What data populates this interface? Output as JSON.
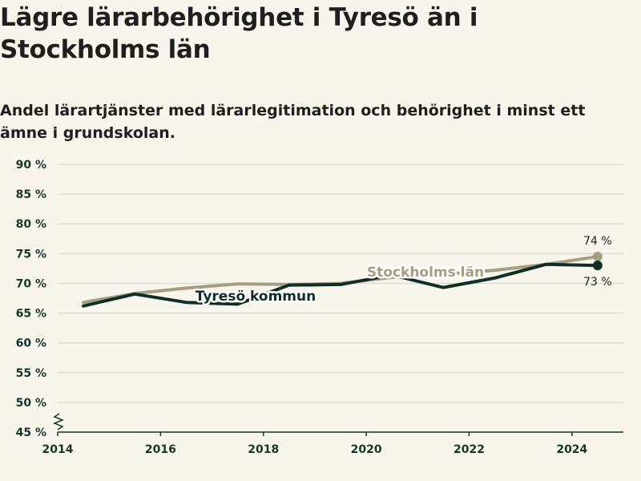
{
  "title": "Lägre lärarbehörighet i Tyresö än i Stockholms län",
  "subtitle": "Andel lärartjänster med lärarlegitimation och behörighet i minst ett ämne i grundskolan.",
  "colors": {
    "tyreso": "#0f2e26",
    "stockholm": "#a39f80",
    "grid": "#dedbd2",
    "axis": "#14372c"
  },
  "chart_data": {
    "type": "line",
    "x": [
      2014.5,
      2015.5,
      2016.5,
      2017.5,
      2018.5,
      2019.5,
      2020.5,
      2021.5,
      2022.5,
      2023.5,
      2024.5
    ],
    "x_ticks": [
      "2014",
      "2016",
      "2018",
      "2020",
      "2022",
      "2024"
    ],
    "y_ticks": [
      "90 %",
      "85 %",
      "80 %",
      "75 %",
      "70 %",
      "65 %",
      "60 %",
      "55 %",
      "50 %",
      "45 %"
    ],
    "xlim": [
      2014,
      2025
    ],
    "ylim": [
      45,
      90
    ],
    "y_axis_break": true,
    "grid": true,
    "series": [
      {
        "name": "Stockholms län",
        "key": "stockholm",
        "values": [
          66.8,
          68.3,
          69.2,
          69.9,
          69.8,
          70.0,
          71.0,
          71.5,
          72.2,
          73.2,
          74.5
        ],
        "end_label": "74 %"
      },
      {
        "name": "Tyresö kommun",
        "key": "tyreso",
        "values": [
          66.2,
          68.2,
          66.8,
          66.5,
          69.7,
          69.8,
          71.4,
          69.3,
          70.9,
          73.2,
          73.0
        ],
        "end_label": "73 %"
      }
    ]
  }
}
